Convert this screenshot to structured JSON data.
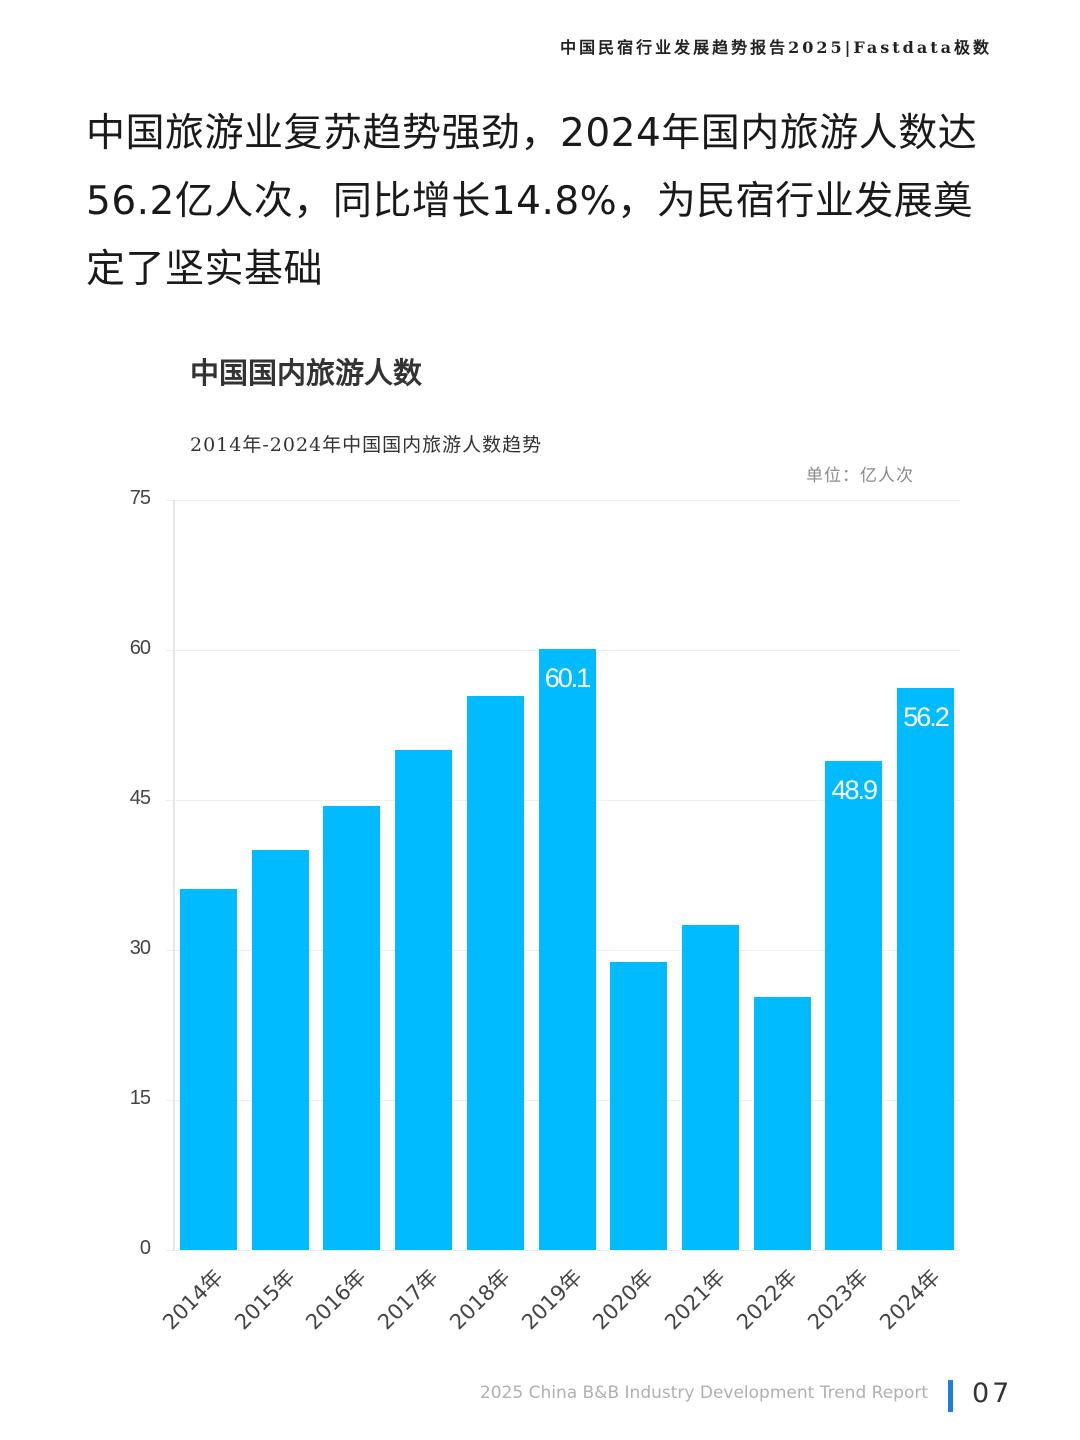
{
  "running_header": "中国民宿行业发展趋势报告2025|Fastdata极数",
  "headline": "中国旅游业复苏趋势强劲，2024年国内旅游人数达56.2亿人次，同比增长14.8%，为民宿行业发展奠定了坚实基础",
  "chart_section": {
    "title": "中国国内旅游人数",
    "subtitle": "2014年-2024年中国国内旅游人数趋势",
    "unit": "单位：亿人次"
  },
  "colors": {
    "bar": "#00bbff",
    "accent_bar": "#1a7fe0",
    "grid": "#eeeeee"
  },
  "chart_data": {
    "type": "bar",
    "title": "2014年-2024年中国国内旅游人数趋势",
    "xlabel": "",
    "ylabel": "亿人次",
    "ylim": [
      0,
      75
    ],
    "yticks": [
      0,
      15,
      30,
      45,
      60,
      75
    ],
    "grid": true,
    "legend": "none",
    "categories": [
      "2014年",
      "2015年",
      "2016年",
      "2017年",
      "2018年",
      "2019年",
      "2020年",
      "2021年",
      "2022年",
      "2023年",
      "2024年"
    ],
    "values": [
      36.1,
      40.0,
      44.4,
      50.0,
      55.4,
      60.1,
      28.8,
      32.5,
      25.3,
      48.9,
      56.2
    ],
    "data_labels": {
      "2019年": "60.1",
      "2023年": "48.9",
      "2024年": "56.2"
    }
  },
  "footer": {
    "text": "2025 China B&B Industry Development Trend Report",
    "page_number": "07"
  }
}
